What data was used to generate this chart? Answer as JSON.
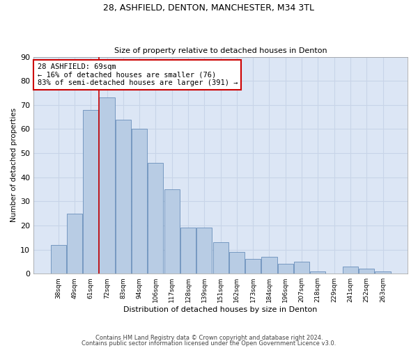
{
  "title1": "28, ASHFIELD, DENTON, MANCHESTER, M34 3TL",
  "title2": "Size of property relative to detached houses in Denton",
  "xlabel": "Distribution of detached houses by size in Denton",
  "ylabel": "Number of detached properties",
  "categories": [
    "38sqm",
    "49sqm",
    "61sqm",
    "72sqm",
    "83sqm",
    "94sqm",
    "106sqm",
    "117sqm",
    "128sqm",
    "139sqm",
    "151sqm",
    "162sqm",
    "173sqm",
    "184sqm",
    "196sqm",
    "207sqm",
    "218sqm",
    "229sqm",
    "241sqm",
    "252sqm",
    "263sqm"
  ],
  "values": [
    12,
    25,
    68,
    73,
    64,
    60,
    46,
    35,
    19,
    19,
    13,
    9,
    6,
    7,
    4,
    5,
    1,
    0,
    3,
    2,
    1
  ],
  "bar_color": "#b8cce4",
  "bar_edgecolor": "#5580b0",
  "vline_color": "#cc0000",
  "annotation_text": "28 ASHFIELD: 69sqm\n← 16% of detached houses are smaller (76)\n83% of semi-detached houses are larger (391) →",
  "annotation_box_color": "#ffffff",
  "annotation_box_edgecolor": "#cc0000",
  "ylim": [
    0,
    90
  ],
  "yticks": [
    0,
    10,
    20,
    30,
    40,
    50,
    60,
    70,
    80,
    90
  ],
  "grid_color": "#c8d4e8",
  "background_color": "#dce6f5",
  "footer1": "Contains HM Land Registry data © Crown copyright and database right 2024.",
  "footer2": "Contains public sector information licensed under the Open Government Licence v3.0."
}
